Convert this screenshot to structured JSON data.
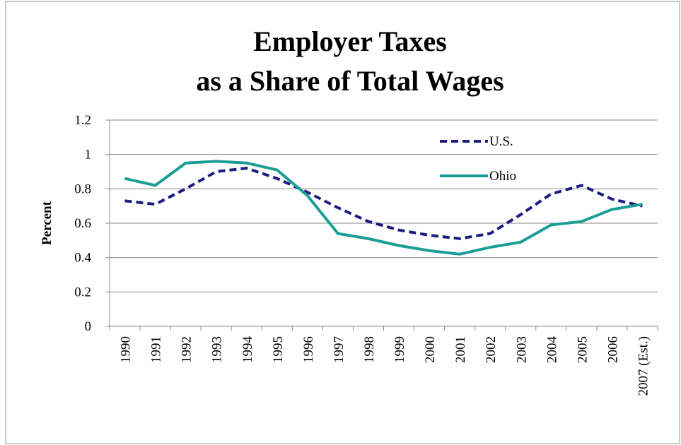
{
  "chart_data": {
    "type": "line",
    "title": [
      "Employer Taxes",
      "as a Share of Total Wages"
    ],
    "y_label": "Percent",
    "categories": [
      "1990",
      "1991",
      "1992",
      "1993",
      "1994",
      "1995",
      "1996",
      "1997",
      "1998",
      "1999",
      "2000",
      "2001",
      "2002",
      "2003",
      "2004",
      "2005",
      "2006",
      "2007 (Est.)"
    ],
    "series": [
      {
        "name": "U.S.",
        "color": "#1c1c80",
        "dashed": true,
        "values": [
          0.73,
          0.71,
          0.8,
          0.9,
          0.92,
          0.86,
          0.78,
          0.69,
          0.61,
          0.56,
          0.53,
          0.51,
          0.54,
          0.65,
          0.77,
          0.82,
          0.74,
          0.7
        ]
      },
      {
        "name": "Ohio",
        "color": "#1a9e96",
        "dashed": false,
        "values": [
          0.86,
          0.82,
          0.95,
          0.96,
          0.95,
          0.91,
          0.76,
          0.54,
          0.51,
          0.47,
          0.44,
          0.42,
          0.46,
          0.49,
          0.59,
          0.61,
          0.68,
          0.71
        ]
      }
    ],
    "ylim": [
      0,
      1.2
    ],
    "yticks": [
      0,
      0.2,
      0.4,
      0.6,
      0.8,
      1,
      1.2
    ],
    "grid": true,
    "legend": "upper-right"
  }
}
